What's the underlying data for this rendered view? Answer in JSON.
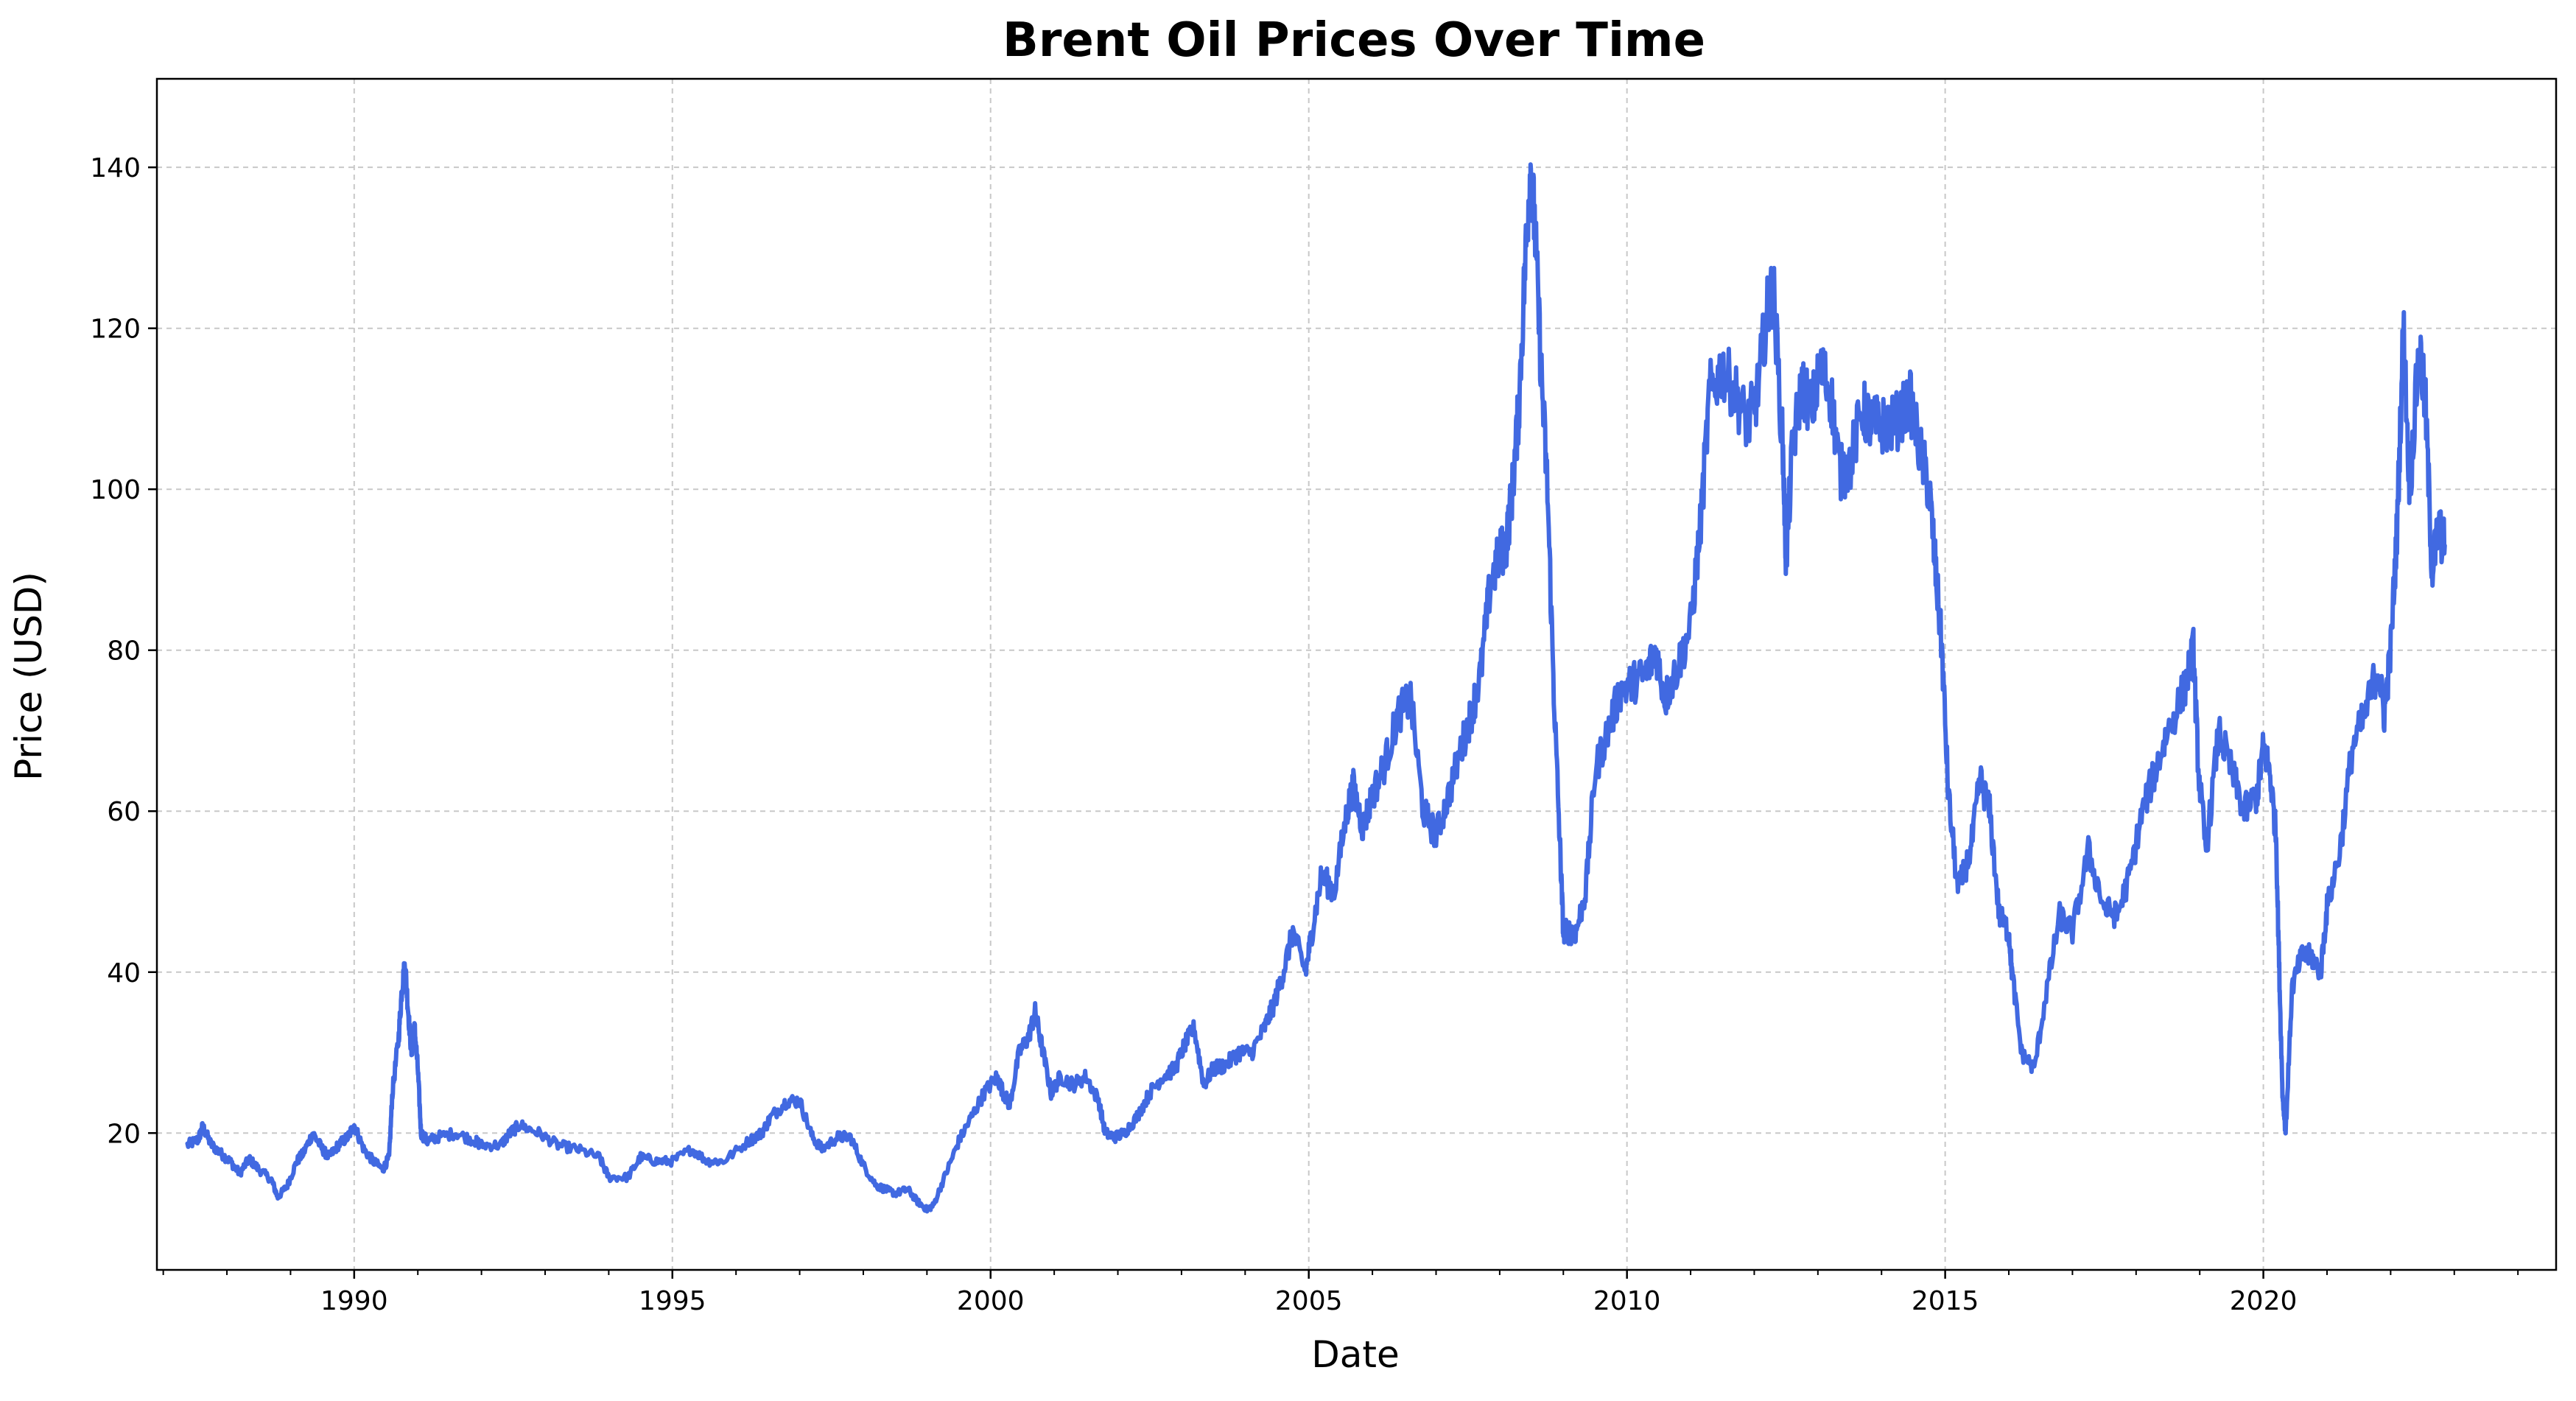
{
  "chart_data": {
    "type": "line",
    "title": "Brent Oil Prices Over Time",
    "xlabel": "Date",
    "ylabel": "Price (USD)",
    "xlim": [
      1986.9,
      2024.6
    ],
    "ylim": [
      3,
      151
    ],
    "x_ticks": [
      1990,
      1995,
      2000,
      2005,
      2010,
      2015,
      2020
    ],
    "y_ticks": [
      20,
      40,
      60,
      80,
      100,
      120,
      140
    ],
    "grid": true,
    "grid_style": "dashed",
    "line_color": "#4169e1",
    "series": [
      {
        "x": [
          1987.38,
          1987.55,
          1987.62,
          1987.75,
          1987.9,
          1988.05,
          1988.2,
          1988.35,
          1988.5,
          1988.7,
          1988.8,
          1988.95,
          1989.1,
          1989.2,
          1989.35,
          1989.5,
          1989.6,
          1989.75,
          1989.9,
          1990.0,
          1990.15,
          1990.3,
          1990.45,
          1990.55,
          1990.6,
          1990.7,
          1990.75,
          1990.8,
          1990.85,
          1990.9,
          1990.95,
          1991.0,
          1991.05,
          1991.15,
          1991.3,
          1991.6,
          1991.9,
          1992.0,
          1992.3,
          1992.45,
          1992.6,
          1992.9,
          1993.2,
          1993.5,
          1993.85,
          1994.0,
          1994.3,
          1994.5,
          1994.75,
          1995.0,
          1995.3,
          1995.55,
          1995.8,
          1996.2,
          1996.4,
          1996.55,
          1996.8,
          1997.0,
          1997.2,
          1997.35,
          1997.6,
          1997.8,
          1998.0,
          1998.2,
          1998.35,
          1998.5,
          1998.7,
          1998.85,
          1999.0,
          1999.1,
          1999.3,
          1999.5,
          1999.7,
          1999.9,
          2000.1,
          2000.2,
          2000.3,
          2000.45,
          2000.6,
          2000.7,
          2000.8,
          2000.95,
          2001.1,
          2001.3,
          2001.5,
          2001.7,
          2001.8,
          2001.95,
          2002.1,
          2002.3,
          2002.5,
          2002.7,
          2002.9,
          2003.05,
          2003.2,
          2003.35,
          2003.5,
          2003.7,
          2003.9,
          2004.1,
          2004.3,
          2004.45,
          2004.6,
          2004.75,
          2004.95,
          2005.05,
          2005.2,
          2005.4,
          2005.6,
          2005.7,
          2005.85,
          2006.0,
          2006.2,
          2006.4,
          2006.6,
          2006.8,
          2007.0,
          2007.2,
          2007.4,
          2007.55,
          2007.7,
          2007.85,
          2008.0,
          2008.1,
          2008.2,
          2008.3,
          2008.4,
          2008.48,
          2008.55,
          2008.65,
          2008.75,
          2008.85,
          2008.95,
          2009.0,
          2009.1,
          2009.2,
          2009.35,
          2009.5,
          2009.7,
          2009.9,
          2010.1,
          2010.3,
          2010.45,
          2010.6,
          2010.8,
          2011.0,
          2011.15,
          2011.3,
          2011.5,
          2011.7,
          2011.9,
          2012.05,
          2012.2,
          2012.3,
          2012.45,
          2012.5,
          2012.6,
          2012.75,
          2012.9,
          2013.05,
          2013.2,
          2013.35,
          2013.5,
          2013.7,
          2013.85,
          2014.0,
          2014.2,
          2014.45,
          2014.6,
          2014.75,
          2014.85,
          2014.95,
          2015.05,
          2015.2,
          2015.4,
          2015.55,
          2015.7,
          2015.85,
          2016.0,
          2016.05,
          2016.2,
          2016.4,
          2016.6,
          2016.8,
          2017.0,
          2017.25,
          2017.5,
          2017.7,
          2017.9,
          2018.1,
          2018.3,
          2018.5,
          2018.75,
          2018.9,
          2018.98,
          2019.1,
          2019.3,
          2019.5,
          2019.7,
          2019.9,
          2020.0,
          2020.1,
          2020.2,
          2020.25,
          2020.3,
          2020.35,
          2020.45,
          2020.6,
          2020.75,
          2020.9,
          2021.0,
          2021.2,
          2021.4,
          2021.6,
          2021.8,
          2021.9,
          2022.0,
          2022.1,
          2022.2,
          2022.3,
          2022.45,
          2022.55,
          2022.65,
          2022.75,
          2022.85
        ],
        "values": [
          18.5,
          19.2,
          20.8,
          18.6,
          17.5,
          16.5,
          15.0,
          16.8,
          15.5,
          14.2,
          12.0,
          13.5,
          16.5,
          17.5,
          20.0,
          18.0,
          17.0,
          18.5,
          19.5,
          21.0,
          18.0,
          16.5,
          15.5,
          17.0,
          25.0,
          32.0,
          38.0,
          41.0,
          35.0,
          30.0,
          33.0,
          28.0,
          20.0,
          19.0,
          19.5,
          20.0,
          19.0,
          18.5,
          18.5,
          20.0,
          21.0,
          20.0,
          18.5,
          18.0,
          17.0,
          14.5,
          14.5,
          17.0,
          16.5,
          16.5,
          18.0,
          16.5,
          16.5,
          19.0,
          20.0,
          22.0,
          24.0,
          24.0,
          19.5,
          18.0,
          19.5,
          19.5,
          16.0,
          13.5,
          13.0,
          12.5,
          13.0,
          11.5,
          10.5,
          11.0,
          15.0,
          19.0,
          22.0,
          25.0,
          27.0,
          25.0,
          23.5,
          30.0,
          32.0,
          35.0,
          31.0,
          25.0,
          27.0,
          26.0,
          27.0,
          24.0,
          20.0,
          19.5,
          20.0,
          22.0,
          25.0,
          27.0,
          28.0,
          31.0,
          33.0,
          26.0,
          28.0,
          28.5,
          30.0,
          30.0,
          33.0,
          36.0,
          40.0,
          45.0,
          40.0,
          45.0,
          52.0,
          50.0,
          60.0,
          63.0,
          58.0,
          62.0,
          66.0,
          72.0,
          74.0,
          60.0,
          57.0,
          62.0,
          68.0,
          72.0,
          77.0,
          88.0,
          92.0,
          93.0,
          100.0,
          110.0,
          128.0,
          140.0,
          133.0,
          115.0,
          100.0,
          75.0,
          55.0,
          45.0,
          45.0,
          45.0,
          50.0,
          65.0,
          70.0,
          75.0,
          76.0,
          77.0,
          80.0,
          74.0,
          78.0,
          83.0,
          95.0,
          112.0,
          115.0,
          112.0,
          108.0,
          112.0,
          122.0,
          125.0,
          105.0,
          91.0,
          105.0,
          113.0,
          110.0,
          115.0,
          112.0,
          102.0,
          103.0,
          110.0,
          108.0,
          108.0,
          108.0,
          111.0,
          105.0,
          100.0,
          90.0,
          80.0,
          62.0,
          50.0,
          55.0,
          64.0,
          60.0,
          47.0,
          45.0,
          40.0,
          30.0,
          28.0,
          38.0,
          47.0,
          45.0,
          55.0,
          48.0,
          47.0,
          52.0,
          60.0,
          65.0,
          70.0,
          75.0,
          80.0,
          65.0,
          55.0,
          70.0,
          65.0,
          60.0,
          62.0,
          68.0,
          65.0,
          57.0,
          40.0,
          25.0,
          20.0,
          38.0,
          42.0,
          42.0,
          40.0,
          48.0,
          55.0,
          68.0,
          72.0,
          78.0,
          72.0,
          80.0,
          95.0,
          120.0,
          100.0,
          118.0,
          110.0,
          90.0,
          95.0,
          93.0
        ]
      }
    ]
  }
}
